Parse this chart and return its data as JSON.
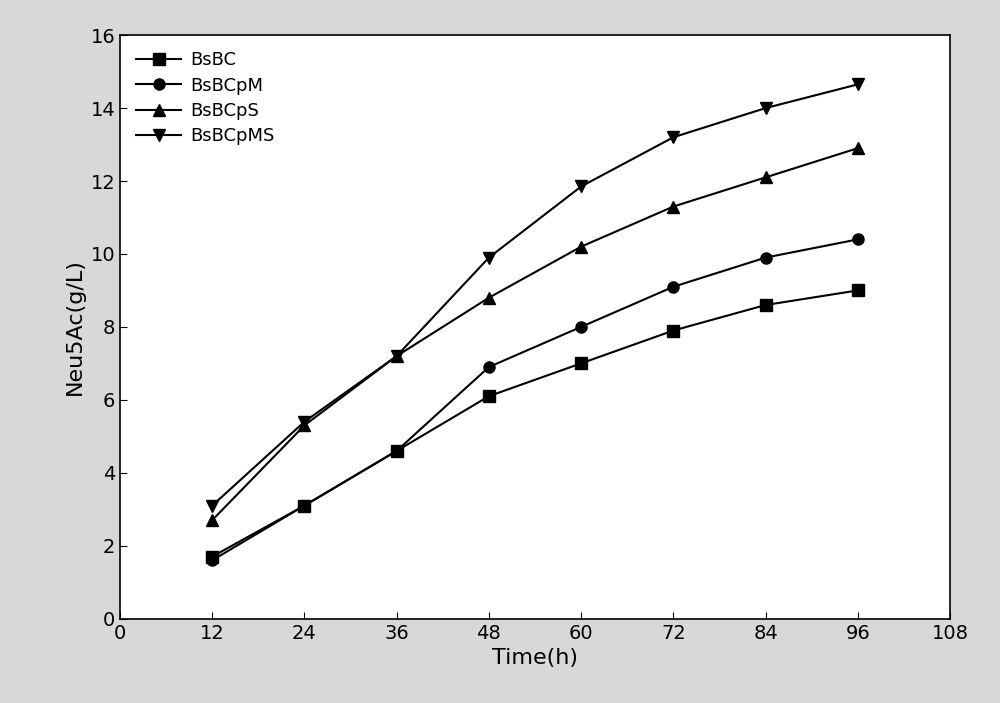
{
  "time": [
    12,
    24,
    36,
    48,
    60,
    72,
    84,
    96
  ],
  "BsBC": [
    1.7,
    3.1,
    4.6,
    6.1,
    7.0,
    7.9,
    8.6,
    9.0
  ],
  "BsBCpM": [
    1.6,
    3.1,
    4.6,
    6.9,
    8.0,
    9.1,
    9.9,
    10.4
  ],
  "BsBCpS": [
    2.7,
    5.3,
    7.2,
    8.8,
    10.2,
    11.3,
    12.1,
    12.9
  ],
  "BsBCpMS": [
    3.1,
    5.4,
    7.2,
    9.9,
    11.85,
    13.2,
    14.0,
    14.65
  ],
  "xlabel": "Time(h)",
  "ylabel": "Neu5Ac(g/L)",
  "xlim": [
    0,
    108
  ],
  "ylim": [
    0,
    16
  ],
  "xticks": [
    0,
    12,
    24,
    36,
    48,
    60,
    72,
    84,
    96,
    108
  ],
  "yticks": [
    0,
    2,
    4,
    6,
    8,
    10,
    12,
    14,
    16
  ],
  "line_color": "#000000",
  "marker_BsBC": "s",
  "marker_BsBCpM": "o",
  "marker_BsBCpS": "^",
  "marker_BsBCpMS": "v",
  "markersize": 8,
  "linewidth": 1.5,
  "legend_labels": [
    "BsBC",
    "BsBCpM",
    "BsBCpS",
    "BsBCpMS"
  ],
  "axes_facecolor": "#ffffff",
  "figure_facecolor": "#d8d8d8",
  "spine_color": "#000000",
  "tick_labelsize": 14,
  "label_fontsize": 16
}
